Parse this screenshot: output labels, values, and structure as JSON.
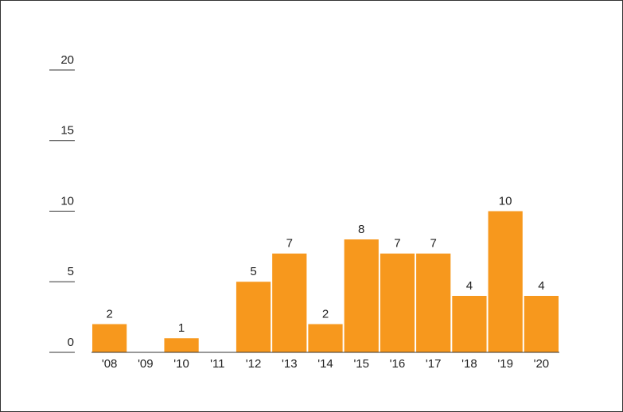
{
  "chart_data": {
    "type": "bar",
    "categories": [
      "'08",
      "'09",
      "'10",
      "'11",
      "'12",
      "'13",
      "'14",
      "'15",
      "'16",
      "'17",
      "'18",
      "'19",
      "'20"
    ],
    "values": [
      2,
      0,
      1,
      0,
      5,
      7,
      2,
      8,
      7,
      7,
      4,
      10,
      4
    ],
    "color": "#f7981d",
    "ylim": [
      0,
      20
    ],
    "yticks": [
      0,
      5,
      10,
      15,
      20
    ]
  }
}
